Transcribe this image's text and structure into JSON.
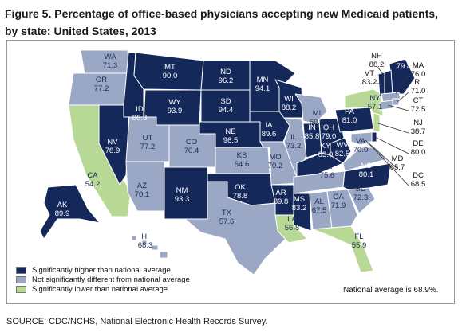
{
  "title": "Figure 5. Percentage of office-based physicians accepting new Medicaid patients, by state: United States, 2013",
  "source": "SOURCE: CDC/NCHS, National Electronic Health Records Survey.",
  "national_average_note": "National average is 68.9%.",
  "colors": {
    "higher": "#15285a",
    "not_different": "#9aa7c5",
    "lower": "#b8d996",
    "label_on_dark": "#ffffff",
    "label_on_light": "#1c2c52",
    "state_border": "#ffffff"
  },
  "legend": [
    {
      "key": "higher",
      "label": "Significantly higher than national average"
    },
    {
      "key": "not_different",
      "label": "Not significantly different from national average"
    },
    {
      "key": "lower",
      "label": "Significantly lower than national average"
    }
  ],
  "states": [
    {
      "abbr": "WA",
      "value": "71.3",
      "category": "not_different"
    },
    {
      "abbr": "OR",
      "value": "77.2",
      "category": "not_different"
    },
    {
      "abbr": "CA",
      "value": "54.2",
      "category": "lower"
    },
    {
      "abbr": "NV",
      "value": "78.9",
      "category": "higher"
    },
    {
      "abbr": "ID",
      "value": "86.8",
      "category": "higher"
    },
    {
      "abbr": "MT",
      "value": "90.0",
      "category": "higher"
    },
    {
      "abbr": "WY",
      "value": "93.9",
      "category": "higher"
    },
    {
      "abbr": "UT",
      "value": "77.2",
      "category": "not_different"
    },
    {
      "abbr": "AZ",
      "value": "70.1",
      "category": "not_different"
    },
    {
      "abbr": "CO",
      "value": "70.4",
      "category": "not_different"
    },
    {
      "abbr": "NM",
      "value": "93.3",
      "category": "higher"
    },
    {
      "abbr": "ND",
      "value": "96.2",
      "category": "higher"
    },
    {
      "abbr": "SD",
      "value": "94.4",
      "category": "higher"
    },
    {
      "abbr": "NE",
      "value": "96.5",
      "category": "higher"
    },
    {
      "abbr": "KS",
      "value": "64.6",
      "category": "not_different"
    },
    {
      "abbr": "OK",
      "value": "78.8",
      "category": "higher"
    },
    {
      "abbr": "TX",
      "value": "57.6",
      "category": "not_different"
    },
    {
      "abbr": "MN",
      "value": "94.1",
      "category": "higher"
    },
    {
      "abbr": "IA",
      "value": "89.6",
      "category": "higher"
    },
    {
      "abbr": "MO",
      "value": "70.2",
      "category": "not_different"
    },
    {
      "abbr": "AR",
      "value": "89.8",
      "category": "higher"
    },
    {
      "abbr": "LA",
      "value": "56.8",
      "category": "lower"
    },
    {
      "abbr": "WI",
      "value": "88.2",
      "category": "higher"
    },
    {
      "abbr": "IL",
      "value": "73.2",
      "category": "not_different"
    },
    {
      "abbr": "MI",
      "value": "69.6",
      "category": "not_different"
    },
    {
      "abbr": "IN",
      "value": "85.8",
      "category": "higher"
    },
    {
      "abbr": "OH",
      "value": "79.0",
      "category": "higher"
    },
    {
      "abbr": "KY",
      "value": "83.0",
      "category": "higher"
    },
    {
      "abbr": "TN",
      "value": "75.6",
      "category": "not_different"
    },
    {
      "abbr": "MS",
      "value": "83.2",
      "category": "higher"
    },
    {
      "abbr": "AL",
      "value": "67.5",
      "category": "not_different"
    },
    {
      "abbr": "GA",
      "value": "71.9",
      "category": "not_different"
    },
    {
      "abbr": "FL",
      "value": "55.9",
      "category": "lower"
    },
    {
      "abbr": "SC",
      "value": "72.3",
      "category": "not_different"
    },
    {
      "abbr": "NC",
      "value": "80.1",
      "category": "higher"
    },
    {
      "abbr": "VA",
      "value": "70.0",
      "category": "not_different"
    },
    {
      "abbr": "WV",
      "value": "82.5",
      "category": "higher"
    },
    {
      "abbr": "PA",
      "value": "81.0",
      "category": "higher"
    },
    {
      "abbr": "NY",
      "value": "57.1",
      "category": "lower"
    },
    {
      "abbr": "ME",
      "value": "79.8",
      "category": "higher"
    },
    {
      "abbr": "VT",
      "value": "83.2",
      "category": "higher"
    },
    {
      "abbr": "NH",
      "value": "88.2",
      "category": "higher"
    },
    {
      "abbr": "MA",
      "value": "76.0",
      "category": "not_different"
    },
    {
      "abbr": "RI",
      "value": "71.0",
      "category": "not_different"
    },
    {
      "abbr": "CT",
      "value": "72.5",
      "category": "not_different"
    },
    {
      "abbr": "NJ",
      "value": "38.7",
      "category": "lower"
    },
    {
      "abbr": "DE",
      "value": "80.0",
      "category": "higher"
    },
    {
      "abbr": "MD",
      "value": "65.7",
      "category": "not_different"
    },
    {
      "abbr": "DC",
      "value": "68.5",
      "category": "not_different"
    },
    {
      "abbr": "AK",
      "value": "89.9",
      "category": "higher"
    },
    {
      "abbr": "HI",
      "value": "68.3",
      "category": "not_different"
    }
  ]
}
